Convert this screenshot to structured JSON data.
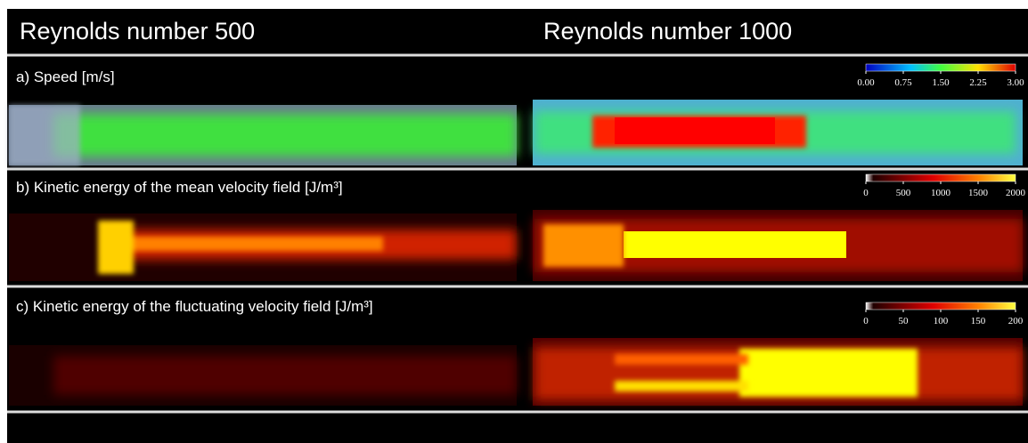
{
  "header": {
    "columns": [
      "Reynolds number 500",
      "Reynolds number 1000"
    ]
  },
  "panels": [
    {
      "label": "a) Speed [m/s]",
      "colorbar": {
        "ticks": [
          {
            "value": 0,
            "label": "0.00"
          },
          0.75,
          {
            "value": 1.5,
            "label": "1.50"
          },
          2.25,
          {
            "value": 3,
            "label": "3.00"
          }
        ]
      }
    },
    {
      "label": "b) Kinetic energy of the mean velocity field [J/m³]",
      "colorbar": {
        "ticks": [
          0,
          500,
          1000,
          1500,
          2000
        ]
      }
    },
    {
      "label": "c) Kinetic energy of the fluctuating velocity field [J/m³]",
      "colorbar": {
        "ticks": [
          0,
          50,
          100,
          150,
          200
        ]
      }
    }
  ]
}
